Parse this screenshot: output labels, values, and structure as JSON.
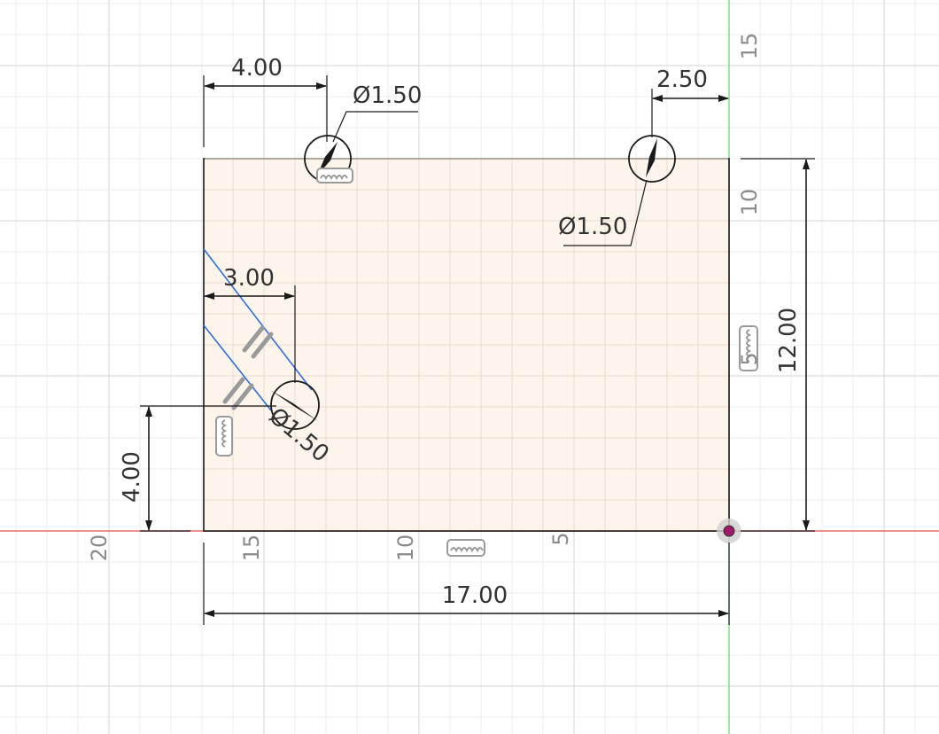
{
  "sketch": {
    "dimensions": {
      "hole_left_from_edge": "4.00",
      "hole_left_diameter": "Ø1.50",
      "hole_right_from_edge": "2.50",
      "hole_right_diameter": "Ø1.50",
      "hole_lower_from_edge": "3.00",
      "hole_lower_diameter": "Ø1.50",
      "hole_lower_height": "4.00",
      "plate_height": "12.00",
      "plate_width": "17.00"
    },
    "axis_labels": {
      "v_15": "15",
      "v_10": "10",
      "v_5": "5",
      "h_20": "20",
      "h_15": "15",
      "h_10": "10",
      "h_5": "5"
    },
    "colors": {
      "plate_fill": "#fdf2e8",
      "grid_minor": "#ececec",
      "grid_major": "#d6d6d6",
      "x_axis": "#ef6b6b",
      "y_axis": "#7ddc7d",
      "construction": "#2f6fe0",
      "origin": "#a01a6a"
    },
    "icons": [
      "coincident-constraint-icon",
      "parallel-constraint-icon",
      "origin-point-icon",
      "center-point-icon"
    ]
  }
}
